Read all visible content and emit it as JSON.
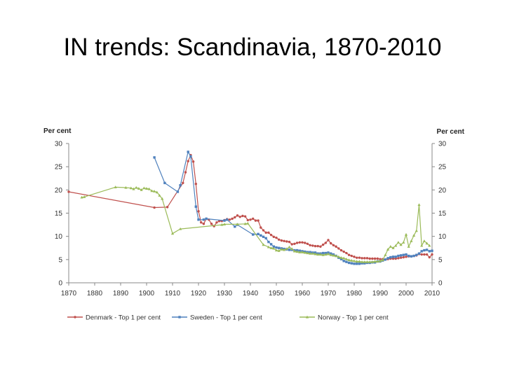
{
  "slide": {
    "title": "IN trends: Scandinavia, 1870-2010"
  },
  "chart_data": {
    "type": "line",
    "ylabel_left": "Per cent",
    "ylabel_right": "Per cent",
    "xlim": [
      1870,
      2010
    ],
    "ylim": [
      0,
      30
    ],
    "x_ticks": [
      "1870",
      "1880",
      "1890",
      "1900",
      "1910",
      "1920",
      "1930",
      "1940",
      "1950",
      "1960",
      "1970",
      "1980",
      "1990",
      "2000",
      "2010"
    ],
    "y_ticks": [
      "0",
      "5",
      "10",
      "15",
      "20",
      "25",
      "30"
    ],
    "grid": false,
    "legend_position": "bottom",
    "series": [
      {
        "name": "Denmark - Top 1 per cent",
        "color": "#c0504d",
        "marker": "circle",
        "points": [
          [
            1870,
            19.6
          ],
          [
            1903,
            16.2
          ],
          [
            1908,
            16.3
          ],
          [
            1914,
            21.5
          ],
          [
            1915,
            23.8
          ],
          [
            1916,
            26.2
          ],
          [
            1917,
            27.5
          ],
          [
            1918,
            26.1
          ],
          [
            1919,
            21.3
          ],
          [
            1920,
            15.4
          ],
          [
            1921,
            13.0
          ],
          [
            1922,
            12.7
          ],
          [
            1923,
            13.8
          ],
          [
            1924,
            13.6
          ],
          [
            1925,
            12.7
          ],
          [
            1926,
            12.2
          ],
          [
            1927,
            13.0
          ],
          [
            1928,
            13.3
          ],
          [
            1929,
            13.3
          ],
          [
            1930,
            13.5
          ],
          [
            1931,
            13.7
          ],
          [
            1932,
            13.6
          ],
          [
            1933,
            13.8
          ],
          [
            1934,
            14.1
          ],
          [
            1935,
            14.5
          ],
          [
            1936,
            14.2
          ],
          [
            1937,
            14.4
          ],
          [
            1938,
            14.3
          ],
          [
            1939,
            13.5
          ],
          [
            1940,
            13.6
          ],
          [
            1941,
            13.8
          ],
          [
            1942,
            13.4
          ],
          [
            1943,
            13.4
          ],
          [
            1944,
            11.9
          ],
          [
            1945,
            11.3
          ],
          [
            1946,
            10.8
          ],
          [
            1947,
            10.8
          ],
          [
            1948,
            10.3
          ],
          [
            1949,
            9.9
          ],
          [
            1950,
            9.7
          ],
          [
            1951,
            9.3
          ],
          [
            1952,
            9.1
          ],
          [
            1953,
            9.0
          ],
          [
            1954,
            8.9
          ],
          [
            1955,
            8.8
          ],
          [
            1956,
            8.3
          ],
          [
            1957,
            8.4
          ],
          [
            1958,
            8.6
          ],
          [
            1959,
            8.7
          ],
          [
            1960,
            8.7
          ],
          [
            1961,
            8.6
          ],
          [
            1962,
            8.4
          ],
          [
            1963,
            8.1
          ],
          [
            1964,
            8.0
          ],
          [
            1965,
            7.9
          ],
          [
            1966,
            7.9
          ],
          [
            1967,
            7.8
          ],
          [
            1968,
            8.2
          ],
          [
            1969,
            8.6
          ],
          [
            1970,
            9.2
          ],
          [
            1971,
            8.5
          ],
          [
            1972,
            8.1
          ],
          [
            1973,
            7.8
          ],
          [
            1974,
            7.4
          ],
          [
            1975,
            7.0
          ],
          [
            1976,
            6.7
          ],
          [
            1977,
            6.4
          ],
          [
            1978,
            6.0
          ],
          [
            1979,
            5.8
          ],
          [
            1980,
            5.6
          ],
          [
            1981,
            5.4
          ],
          [
            1982,
            5.4
          ],
          [
            1983,
            5.3
          ],
          [
            1984,
            5.3
          ],
          [
            1985,
            5.3
          ],
          [
            1986,
            5.2
          ],
          [
            1987,
            5.2
          ],
          [
            1988,
            5.2
          ],
          [
            1989,
            5.2
          ],
          [
            1990,
            5.1
          ],
          [
            1991,
            5.1
          ],
          [
            1992,
            5.0
          ],
          [
            1993,
            5.1
          ],
          [
            1994,
            5.2
          ],
          [
            1995,
            5.2
          ],
          [
            1996,
            5.2
          ],
          [
            1997,
            5.3
          ],
          [
            1998,
            5.4
          ],
          [
            1999,
            5.5
          ],
          [
            2000,
            5.6
          ],
          [
            2001,
            5.7
          ],
          [
            2002,
            5.7
          ],
          [
            2003,
            5.8
          ],
          [
            2004,
            5.9
          ],
          [
            2005,
            6.2
          ],
          [
            2006,
            6.1
          ],
          [
            2007,
            6.1
          ],
          [
            2008,
            6.1
          ],
          [
            2009,
            5.5
          ],
          [
            2010,
            6.1
          ]
        ]
      },
      {
        "name": "Sweden - Top 1 per cent",
        "color": "#4f81bd",
        "marker": "square",
        "points": [
          [
            1903,
            27.0
          ],
          [
            1907,
            21.5
          ],
          [
            1912,
            19.6
          ],
          [
            1913,
            21.0
          ],
          [
            1916,
            28.2
          ],
          [
            1917,
            27.2
          ],
          [
            1919,
            16.4
          ],
          [
            1920,
            13.6
          ],
          [
            1922,
            13.6
          ],
          [
            1923,
            13.8
          ],
          [
            1930,
            13.4
          ],
          [
            1931,
            13.6
          ],
          [
            1934,
            12.1
          ],
          [
            1935,
            12.5
          ],
          [
            1941,
            10.4
          ],
          [
            1943,
            10.5
          ],
          [
            1944,
            10.2
          ],
          [
            1945,
            9.9
          ],
          [
            1946,
            9.6
          ],
          [
            1947,
            8.8
          ],
          [
            1948,
            8.3
          ],
          [
            1949,
            7.8
          ],
          [
            1950,
            7.6
          ],
          [
            1951,
            7.5
          ],
          [
            1952,
            7.4
          ],
          [
            1953,
            7.3
          ],
          [
            1954,
            7.2
          ],
          [
            1955,
            7.1
          ],
          [
            1956,
            7.1
          ],
          [
            1957,
            7.0
          ],
          [
            1958,
            7.0
          ],
          [
            1959,
            6.9
          ],
          [
            1960,
            6.8
          ],
          [
            1961,
            6.7
          ],
          [
            1962,
            6.6
          ],
          [
            1963,
            6.6
          ],
          [
            1964,
            6.5
          ],
          [
            1965,
            6.5
          ],
          [
            1966,
            6.3
          ],
          [
            1967,
            6.3
          ],
          [
            1968,
            6.4
          ],
          [
            1969,
            6.4
          ],
          [
            1970,
            6.5
          ],
          [
            1971,
            6.3
          ],
          [
            1972,
            6.1
          ],
          [
            1973,
            5.8
          ],
          [
            1974,
            5.4
          ],
          [
            1975,
            5.1
          ],
          [
            1976,
            4.7
          ],
          [
            1977,
            4.5
          ],
          [
            1978,
            4.3
          ],
          [
            1979,
            4.2
          ],
          [
            1980,
            4.1
          ],
          [
            1981,
            4.1
          ],
          [
            1982,
            4.1
          ],
          [
            1983,
            4.2
          ],
          [
            1984,
            4.2
          ],
          [
            1985,
            4.3
          ],
          [
            1986,
            4.3
          ],
          [
            1987,
            4.4
          ],
          [
            1988,
            4.4
          ],
          [
            1989,
            4.6
          ],
          [
            1990,
            4.6
          ],
          [
            1991,
            4.8
          ],
          [
            1992,
            5.0
          ],
          [
            1993,
            5.3
          ],
          [
            1994,
            5.5
          ],
          [
            1995,
            5.6
          ],
          [
            1996,
            5.6
          ],
          [
            1997,
            5.8
          ],
          [
            1998,
            5.9
          ],
          [
            1999,
            6.0
          ],
          [
            2000,
            6.1
          ],
          [
            2001,
            5.8
          ],
          [
            2002,
            5.7
          ],
          [
            2003,
            5.8
          ],
          [
            2004,
            6.0
          ],
          [
            2005,
            6.3
          ],
          [
            2006,
            6.8
          ],
          [
            2007,
            7.0
          ],
          [
            2008,
            7.1
          ],
          [
            2009,
            6.8
          ],
          [
            2010,
            6.9
          ]
        ]
      },
      {
        "name": "Norway - Top 1 per cent",
        "color": "#9bbb59",
        "marker": "triangle",
        "points": [
          [
            1875,
            18.4
          ],
          [
            1876,
            18.5
          ],
          [
            1888,
            20.6
          ],
          [
            1892,
            20.5
          ],
          [
            1894,
            20.4
          ],
          [
            1895,
            20.2
          ],
          [
            1896,
            20.5
          ],
          [
            1897,
            20.3
          ],
          [
            1898,
            20.0
          ],
          [
            1899,
            20.4
          ],
          [
            1900,
            20.3
          ],
          [
            1901,
            20.2
          ],
          [
            1902,
            19.8
          ],
          [
            1903,
            19.7
          ],
          [
            1904,
            19.5
          ],
          [
            1905,
            18.8
          ],
          [
            1906,
            18.1
          ],
          [
            1910,
            10.6
          ],
          [
            1913,
            11.6
          ],
          [
            1929,
            12.5
          ],
          [
            1930,
            12.6
          ],
          [
            1935,
            12.6
          ],
          [
            1938,
            12.7
          ],
          [
            1939,
            12.8
          ],
          [
            1945,
            8.2
          ],
          [
            1947,
            7.7
          ],
          [
            1948,
            7.5
          ],
          [
            1949,
            7.4
          ],
          [
            1950,
            7.0
          ],
          [
            1951,
            6.9
          ],
          [
            1952,
            7.2
          ],
          [
            1953,
            7.1
          ],
          [
            1954,
            7.3
          ],
          [
            1955,
            7.7
          ],
          [
            1956,
            7.3
          ],
          [
            1957,
            6.8
          ],
          [
            1958,
            6.7
          ],
          [
            1959,
            6.6
          ],
          [
            1960,
            6.6
          ],
          [
            1961,
            6.5
          ],
          [
            1962,
            6.4
          ],
          [
            1963,
            6.3
          ],
          [
            1964,
            6.3
          ],
          [
            1965,
            6.2
          ],
          [
            1966,
            6.1
          ],
          [
            1967,
            6.1
          ],
          [
            1968,
            6.0
          ],
          [
            1969,
            6.1
          ],
          [
            1970,
            6.2
          ],
          [
            1971,
            6.0
          ],
          [
            1972,
            5.9
          ],
          [
            1973,
            5.8
          ],
          [
            1974,
            5.6
          ],
          [
            1975,
            5.4
          ],
          [
            1976,
            5.3
          ],
          [
            1977,
            5.1
          ],
          [
            1978,
            4.9
          ],
          [
            1979,
            4.8
          ],
          [
            1980,
            4.7
          ],
          [
            1981,
            4.6
          ],
          [
            1982,
            4.6
          ],
          [
            1983,
            4.5
          ],
          [
            1984,
            4.5
          ],
          [
            1985,
            4.5
          ],
          [
            1986,
            4.5
          ],
          [
            1987,
            4.5
          ],
          [
            1988,
            4.6
          ],
          [
            1989,
            4.6
          ],
          [
            1990,
            4.7
          ],
          [
            1991,
            4.9
          ],
          [
            1992,
            6.0
          ],
          [
            1993,
            7.2
          ],
          [
            1994,
            7.8
          ],
          [
            1995,
            7.5
          ],
          [
            1996,
            8.0
          ],
          [
            1997,
            8.7
          ],
          [
            1998,
            8.2
          ],
          [
            1999,
            8.7
          ],
          [
            2000,
            10.4
          ],
          [
            2001,
            7.8
          ],
          [
            2002,
            9.0
          ],
          [
            2003,
            10.2
          ],
          [
            2004,
            11.2
          ],
          [
            2005,
            16.8
          ],
          [
            2006,
            8.0
          ],
          [
            2007,
            9.0
          ],
          [
            2008,
            8.5
          ],
          [
            2009,
            8.0
          ]
        ]
      }
    ]
  }
}
